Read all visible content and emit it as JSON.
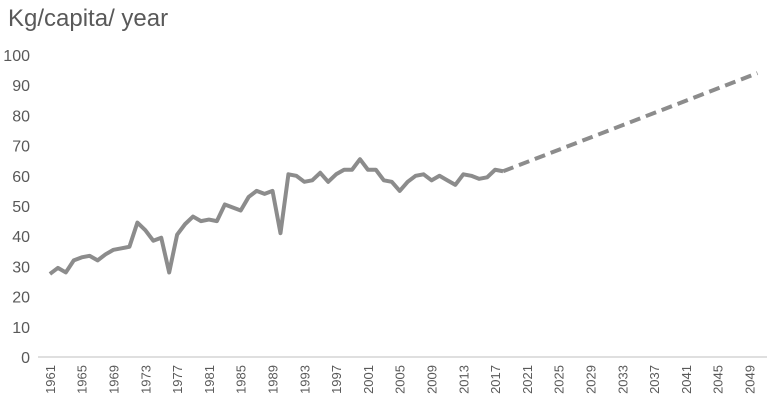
{
  "chart_data": {
    "type": "line",
    "title": "Kg/capita/ year",
    "series": [
      {
        "color": "#8c8c8c",
        "dashed": false,
        "x": [
          1961,
          1962,
          1963,
          1964,
          1965,
          1966,
          1967,
          1968,
          1969,
          1970,
          1971,
          1972,
          1973,
          1974,
          1975,
          1976,
          1977,
          1978,
          1979,
          1980,
          1981,
          1982,
          1983,
          1984,
          1985,
          1986,
          1987,
          1988,
          1989,
          1990,
          1991,
          1992,
          1993,
          1994,
          1995,
          1996,
          1997,
          1998,
          1999,
          2000,
          2001,
          2002,
          2003,
          2004,
          2005,
          2006,
          2007,
          2008,
          2009,
          2010,
          2011,
          2012,
          2013,
          2014,
          2015,
          2016,
          2017,
          2018
        ],
        "values": [
          27.5,
          29.5,
          28,
          32,
          33,
          33.5,
          32,
          34,
          35.5,
          36,
          36.5,
          44.5,
          42,
          38.5,
          39.5,
          28,
          40.5,
          44,
          46.5,
          45,
          45.5,
          45,
          50.5,
          49.5,
          48.5,
          53,
          55,
          54,
          55,
          41,
          60.5,
          60,
          58,
          58.5,
          61,
          58,
          60.5,
          62,
          62,
          65.5,
          62,
          62,
          58.5,
          58,
          55,
          58,
          60,
          60.5,
          58.5,
          60,
          58.5,
          57,
          60.5,
          60,
          59,
          59.5,
          62,
          61.5
        ]
      },
      {
        "color": "#8c8c8c",
        "dashed": true,
        "x": [
          2018,
          2050
        ],
        "values": [
          61.5,
          94
        ]
      }
    ],
    "xlim": [
      1959.5,
      2051.2
    ],
    "xticks": [
      1961,
      1965,
      1969,
      1973,
      1977,
      1981,
      1985,
      1989,
      1993,
      1997,
      2001,
      2005,
      2009,
      2013,
      2017,
      2021,
      2025,
      2029,
      2033,
      2037,
      2041,
      2045,
      2049
    ],
    "ylim": [
      0,
      100
    ],
    "yticks": [
      0,
      10,
      20,
      30,
      40,
      50,
      60,
      70,
      80,
      90,
      100
    ],
    "grid": false
  }
}
